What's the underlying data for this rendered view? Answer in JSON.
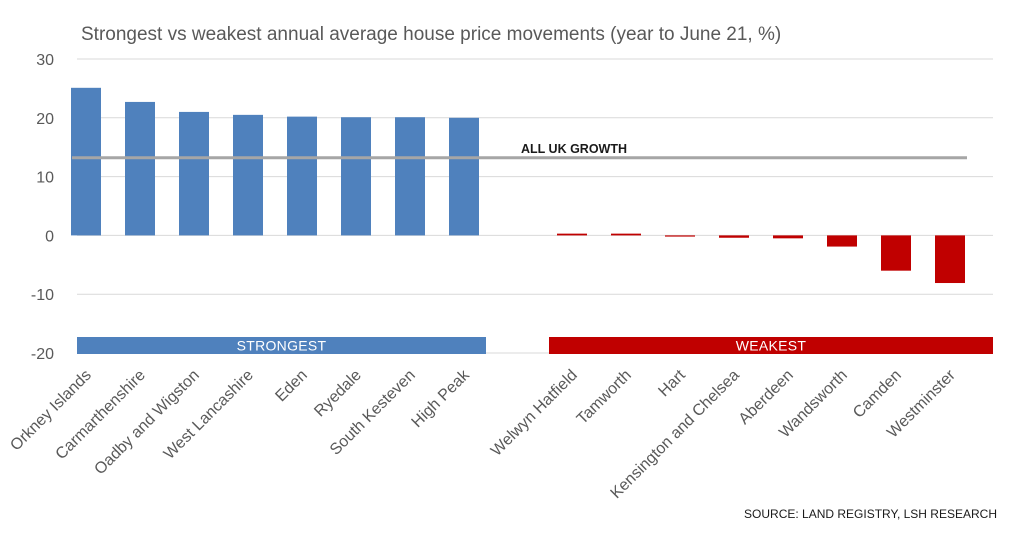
{
  "chart_data": {
    "type": "bar",
    "title": "Strongest vs weakest annual average house price movements (year to June 21, %)",
    "xlabel": "",
    "ylabel": "",
    "ylim": [
      -20,
      30
    ],
    "yticks": [
      30,
      20,
      10,
      0,
      -10,
      -20
    ],
    "grid": true,
    "groups": [
      {
        "name": "strongest",
        "label": "STRONGEST",
        "color": "#4f81bd",
        "categories": [
          "Orkney Islands",
          "Carmarthenshire",
          "Oadby and Wigston",
          "West Lancashire",
          "Eden",
          "Ryedale",
          "South Kesteven",
          "High Peak"
        ],
        "values": [
          25.1,
          22.7,
          21.0,
          20.5,
          20.2,
          20.1,
          20.1,
          20.0
        ]
      },
      {
        "name": "weakest",
        "label": "WEAKEST",
        "color": "#c00000",
        "categories": [
          "Welwyn Hatfield",
          "Tamworth",
          "Hart",
          "Kensington and Chelsea",
          "Aberdeen",
          "Wandsworth",
          "Camden",
          "Westminster"
        ],
        "values": [
          0.3,
          0.3,
          -0.2,
          -0.4,
          -0.5,
          -1.9,
          -6.0,
          -8.1
        ]
      }
    ],
    "reference_line": {
      "label": "ALL UK GROWTH",
      "value": 13.2,
      "color": "#a6a6a6"
    }
  },
  "source": "SOURCE: LAND REGISTRY, LSH RESEARCH"
}
